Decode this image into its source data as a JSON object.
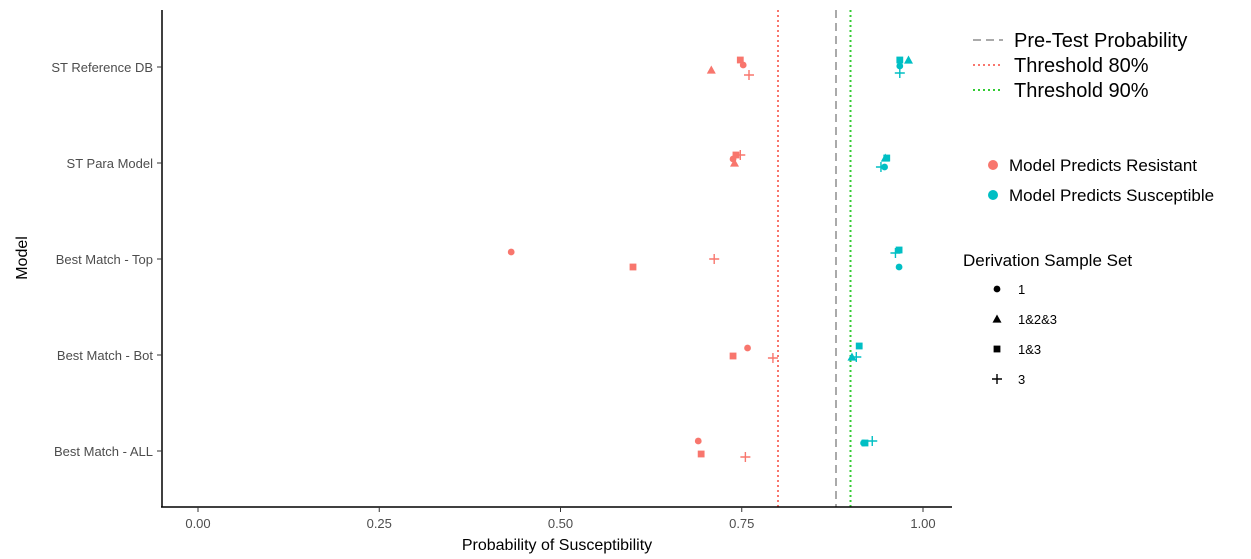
{
  "chart_data": {
    "type": "scatter",
    "xlabel": "Probability of Susceptibility",
    "ylabel": "Model",
    "xlim": [
      -0.05,
      1.04
    ],
    "x_ticks": [
      0.0,
      0.25,
      0.5,
      0.75,
      1.0
    ],
    "x_tick_labels": [
      "0.00",
      "0.25",
      "0.50",
      "0.75",
      "1.00"
    ],
    "categories": [
      "ST Reference DB",
      "ST Para Model",
      "Best Match - Top",
      "Best Match - Bot",
      "Best Match - ALL"
    ],
    "grid": false,
    "reference_lines": [
      {
        "name": "Pre-Test Probability",
        "x": 0.88,
        "style": "dashed",
        "color": "#aaaaaa"
      },
      {
        "name": "Threshold 80%",
        "x": 0.8,
        "style": "dotted",
        "color": "#f8766d"
      },
      {
        "name": "Threshold 90%",
        "x": 0.9,
        "style": "dotted",
        "color": "#33cc33"
      }
    ],
    "color_legend_items": [
      {
        "name": "Model Predicts Resistant",
        "color": "#f8766d"
      },
      {
        "name": "Model Predicts Susceptible",
        "color": "#00bfc4"
      }
    ],
    "shape_legend_title": "Derivation Sample Set",
    "shape_legend_items": [
      {
        "name": "1",
        "shape": "circle"
      },
      {
        "name": "1&2&3",
        "shape": "triangle"
      },
      {
        "name": "1&3",
        "shape": "square"
      },
      {
        "name": "3",
        "shape": "plus"
      }
    ],
    "legend_position": "right",
    "points": [
      {
        "model": "ST Reference DB",
        "x": 0.748,
        "set": "1&3",
        "prediction": "resistant"
      },
      {
        "model": "ST Reference DB",
        "x": 0.752,
        "set": "1",
        "prediction": "resistant"
      },
      {
        "model": "ST Reference DB",
        "x": 0.708,
        "set": "1&2&3",
        "prediction": "resistant"
      },
      {
        "model": "ST Reference DB",
        "x": 0.76,
        "set": "3",
        "prediction": "resistant"
      },
      {
        "model": "ST Reference DB",
        "x": 0.968,
        "set": "1&3",
        "prediction": "susceptible"
      },
      {
        "model": "ST Reference DB",
        "x": 0.98,
        "set": "1&2&3",
        "prediction": "susceptible"
      },
      {
        "model": "ST Reference DB",
        "x": 0.968,
        "set": "1",
        "prediction": "susceptible"
      },
      {
        "model": "ST Reference DB",
        "x": 0.968,
        "set": "3",
        "prediction": "susceptible"
      },
      {
        "model": "ST Para Model",
        "x": 0.742,
        "set": "1&3",
        "prediction": "resistant"
      },
      {
        "model": "ST Para Model",
        "x": 0.748,
        "set": "3",
        "prediction": "resistant"
      },
      {
        "model": "ST Para Model",
        "x": 0.738,
        "set": "1",
        "prediction": "resistant"
      },
      {
        "model": "ST Para Model",
        "x": 0.74,
        "set": "1&2&3",
        "prediction": "resistant"
      },
      {
        "model": "ST Para Model",
        "x": 0.95,
        "set": "1&3",
        "prediction": "susceptible"
      },
      {
        "model": "ST Para Model",
        "x": 0.948,
        "set": "1&2&3",
        "prediction": "susceptible"
      },
      {
        "model": "ST Para Model",
        "x": 0.942,
        "set": "3",
        "prediction": "susceptible"
      },
      {
        "model": "ST Para Model",
        "x": 0.947,
        "set": "1",
        "prediction": "susceptible"
      },
      {
        "model": "Best Match - Top",
        "x": 0.432,
        "set": "1",
        "prediction": "resistant"
      },
      {
        "model": "Best Match - Top",
        "x": 0.6,
        "set": "1&3",
        "prediction": "resistant"
      },
      {
        "model": "Best Match - Top",
        "x": 0.712,
        "set": "3",
        "prediction": "resistant"
      },
      {
        "model": "Best Match - Top",
        "x": 0.967,
        "set": "1&3",
        "prediction": "susceptible"
      },
      {
        "model": "Best Match - Top",
        "x": 0.962,
        "set": "3",
        "prediction": "susceptible"
      },
      {
        "model": "Best Match - Top",
        "x": 0.967,
        "set": "1",
        "prediction": "susceptible"
      },
      {
        "model": "Best Match - Bot",
        "x": 0.758,
        "set": "1",
        "prediction": "resistant"
      },
      {
        "model": "Best Match - Bot",
        "x": 0.738,
        "set": "1&3",
        "prediction": "resistant"
      },
      {
        "model": "Best Match - Bot",
        "x": 0.793,
        "set": "3",
        "prediction": "resistant"
      },
      {
        "model": "Best Match - Bot",
        "x": 0.912,
        "set": "1&3",
        "prediction": "susceptible"
      },
      {
        "model": "Best Match - Bot",
        "x": 0.902,
        "set": "1&2&3",
        "prediction": "susceptible"
      },
      {
        "model": "Best Match - Bot",
        "x": 0.908,
        "set": "3",
        "prediction": "susceptible"
      },
      {
        "model": "Best Match - ALL",
        "x": 0.69,
        "set": "1",
        "prediction": "resistant"
      },
      {
        "model": "Best Match - ALL",
        "x": 0.694,
        "set": "1&3",
        "prediction": "resistant"
      },
      {
        "model": "Best Match - ALL",
        "x": 0.755,
        "set": "3",
        "prediction": "resistant"
      },
      {
        "model": "Best Match - ALL",
        "x": 0.93,
        "set": "3",
        "prediction": "susceptible"
      },
      {
        "model": "Best Match - ALL",
        "x": 0.92,
        "set": "1&3",
        "prediction": "susceptible"
      },
      {
        "model": "Best Match - ALL",
        "x": 0.918,
        "set": "1",
        "prediction": "susceptible"
      }
    ]
  }
}
